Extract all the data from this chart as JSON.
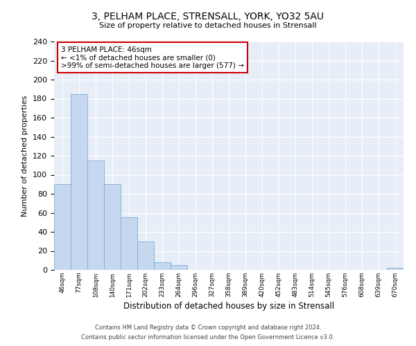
{
  "title": "3, PELHAM PLACE, STRENSALL, YORK, YO32 5AU",
  "subtitle": "Size of property relative to detached houses in Strensall",
  "xlabel": "Distribution of detached houses by size in Strensall",
  "ylabel": "Number of detached properties",
  "categories": [
    "46sqm",
    "77sqm",
    "108sqm",
    "140sqm",
    "171sqm",
    "202sqm",
    "233sqm",
    "264sqm",
    "296sqm",
    "327sqm",
    "358sqm",
    "389sqm",
    "420sqm",
    "452sqm",
    "483sqm",
    "514sqm",
    "545sqm",
    "576sqm",
    "608sqm",
    "639sqm",
    "670sqm"
  ],
  "values": [
    90,
    185,
    115,
    90,
    55,
    30,
    8,
    5,
    0,
    0,
    0,
    0,
    0,
    0,
    0,
    0,
    0,
    0,
    0,
    0,
    2
  ],
  "bar_color": "#c5d8f0",
  "bar_edge_color": "#7aadd4",
  "ylim": [
    0,
    240
  ],
  "yticks": [
    0,
    20,
    40,
    60,
    80,
    100,
    120,
    140,
    160,
    180,
    200,
    220,
    240
  ],
  "annotation_title": "3 PELHAM PLACE: 46sqm",
  "annotation_line1": "← <1% of detached houses are smaller (0)",
  "annotation_line2": ">99% of semi-detached houses are larger (577) →",
  "annotation_box_color": "#ffffff",
  "annotation_box_edge_color": "#cc0000",
  "footer_line1": "Contains HM Land Registry data © Crown copyright and database right 2024.",
  "footer_line2": "Contains public sector information licensed under the Open Government Licence v3.0.",
  "plot_bg_color": "#e8eef8",
  "fig_bg_color": "#ffffff"
}
